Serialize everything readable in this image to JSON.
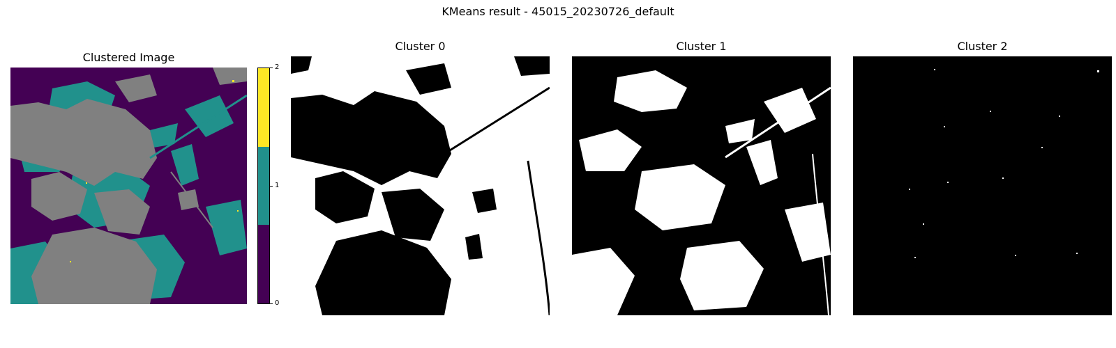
{
  "figure": {
    "title": "KMeans result - 45015_20230726_default"
  },
  "panels": {
    "clustered": {
      "title": "Clustered Image"
    },
    "cluster0": {
      "title": "Cluster 0"
    },
    "cluster1": {
      "title": "Cluster 1"
    },
    "cluster2": {
      "title": "Cluster 2"
    }
  },
  "colorbar": {
    "ticks": [
      "0",
      "1",
      "2"
    ],
    "colors": [
      "#440154",
      "#21918c",
      "#fde725"
    ]
  },
  "colors": {
    "cluster0": "#440154",
    "cluster1": "#21918c",
    "cluster2": "#fde725",
    "masked": "#808080",
    "mask_on": "#ffffff",
    "mask_off": "#000000"
  }
}
